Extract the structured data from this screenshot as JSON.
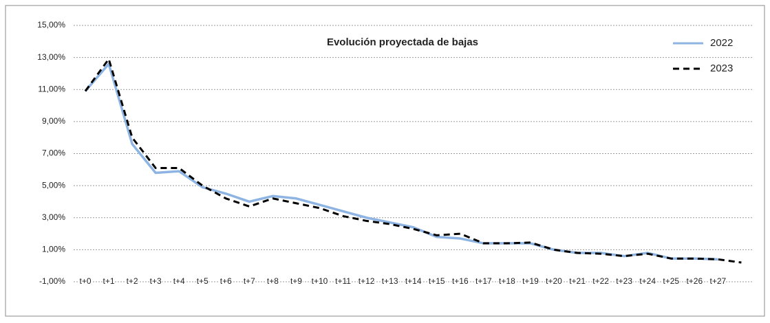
{
  "chart_data": {
    "type": "line",
    "title": "Evolución proyectada de bajas",
    "categories": [
      "t+0",
      "t+1",
      "t+2",
      "t+3",
      "t+4",
      "t+5",
      "t+6",
      "t+7",
      "t+8",
      "t+9",
      "t+10",
      "t+11",
      "t+12",
      "t+13",
      "t+14",
      "t+15",
      "t+16",
      "t+17",
      "t+18",
      "t+19",
      "t+20",
      "t+21",
      "t+22",
      "t+23",
      "t+24",
      "t+25",
      "t+26",
      "t+27",
      null
    ],
    "series": [
      {
        "name": "2022",
        "color": "#8db4e2",
        "dash": false,
        "values": [
          10.9,
          12.6,
          7.6,
          5.8,
          5.9,
          4.9,
          4.5,
          4.0,
          4.35,
          4.2,
          3.8,
          3.4,
          3.0,
          2.7,
          2.4,
          1.8,
          1.7,
          1.4,
          1.4,
          1.4,
          1.0,
          0.8,
          0.8,
          0.6,
          0.8,
          0.45,
          0.45,
          0.4,
          null
        ]
      },
      {
        "name": "2023",
        "color": "#000000",
        "dash": true,
        "values": [
          10.9,
          12.9,
          8.0,
          6.1,
          6.1,
          5.0,
          4.2,
          3.7,
          4.2,
          3.9,
          3.6,
          3.1,
          2.8,
          2.6,
          2.3,
          1.9,
          2.0,
          1.4,
          1.4,
          1.45,
          1.0,
          0.8,
          0.75,
          0.6,
          0.75,
          0.45,
          0.45,
          0.4,
          0.2
        ]
      }
    ],
    "ylim": [
      -1,
      15
    ],
    "yticks": [
      {
        "value": -1,
        "label": "-1,00%"
      },
      {
        "value": 1,
        "label": "1,00%"
      },
      {
        "value": 3,
        "label": "3,00%"
      },
      {
        "value": 5,
        "label": "5,00%"
      },
      {
        "value": 7,
        "label": "7,00%"
      },
      {
        "value": 9,
        "label": "9,00%"
      },
      {
        "value": 11,
        "label": "11,00%"
      },
      {
        "value": 13,
        "label": "13,00%"
      },
      {
        "value": 15,
        "label": "15,00%"
      }
    ],
    "grid": true,
    "legend": "top-right"
  }
}
